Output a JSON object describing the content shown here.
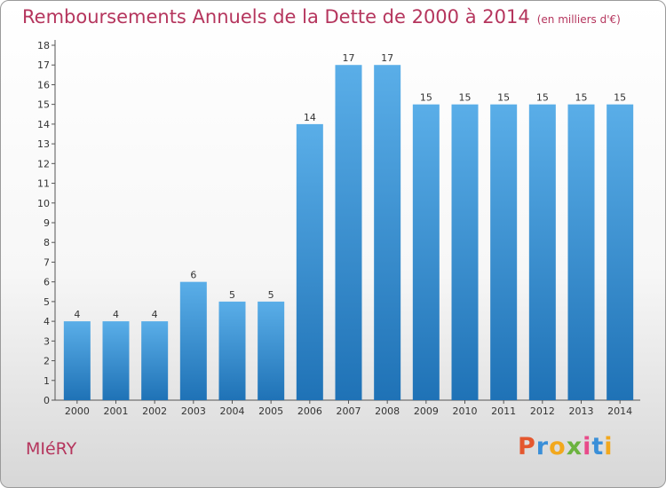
{
  "header": {
    "title": "Remboursements Annuels de la Dette de 2000 à 2014",
    "unit": "(en milliers d'€)"
  },
  "footer": {
    "commune": "MIéRY",
    "logo": "Proxiti"
  },
  "colors": {
    "title": "#b5355d",
    "bar_light": "#5aaee8",
    "bar_dark": "#1f72b6",
    "logo_letters": [
      "#e4572e",
      "#3a8fd8",
      "#f2a81d",
      "#6cb33f",
      "#e84b8a",
      "#3a8fd8",
      "#f2a81d"
    ]
  },
  "chart_data": {
    "type": "bar",
    "title": "Remboursements Annuels de la Dette de 2000 à 2014",
    "subtitle": "(en milliers d'€)",
    "categories": [
      "2000",
      "2001",
      "2002",
      "2003",
      "2004",
      "2005",
      "2006",
      "2007",
      "2008",
      "2009",
      "2010",
      "2011",
      "2012",
      "2013",
      "2014"
    ],
    "values": [
      4,
      4,
      4,
      6,
      5,
      5,
      14,
      17,
      17,
      15,
      15,
      15,
      15,
      15,
      15
    ],
    "data_labels": [
      "4",
      "4",
      "4",
      "6",
      "5",
      "5",
      "14",
      "17",
      "17",
      "15",
      "15",
      "15",
      "15",
      "15",
      "15"
    ],
    "xlabel": "",
    "ylabel": "",
    "ylim": [
      0,
      18
    ],
    "yticks": [
      0,
      1,
      2,
      3,
      4,
      5,
      6,
      7,
      8,
      9,
      10,
      11,
      12,
      13,
      14,
      15,
      16,
      17,
      18
    ],
    "grid": false,
    "legend": "none"
  }
}
